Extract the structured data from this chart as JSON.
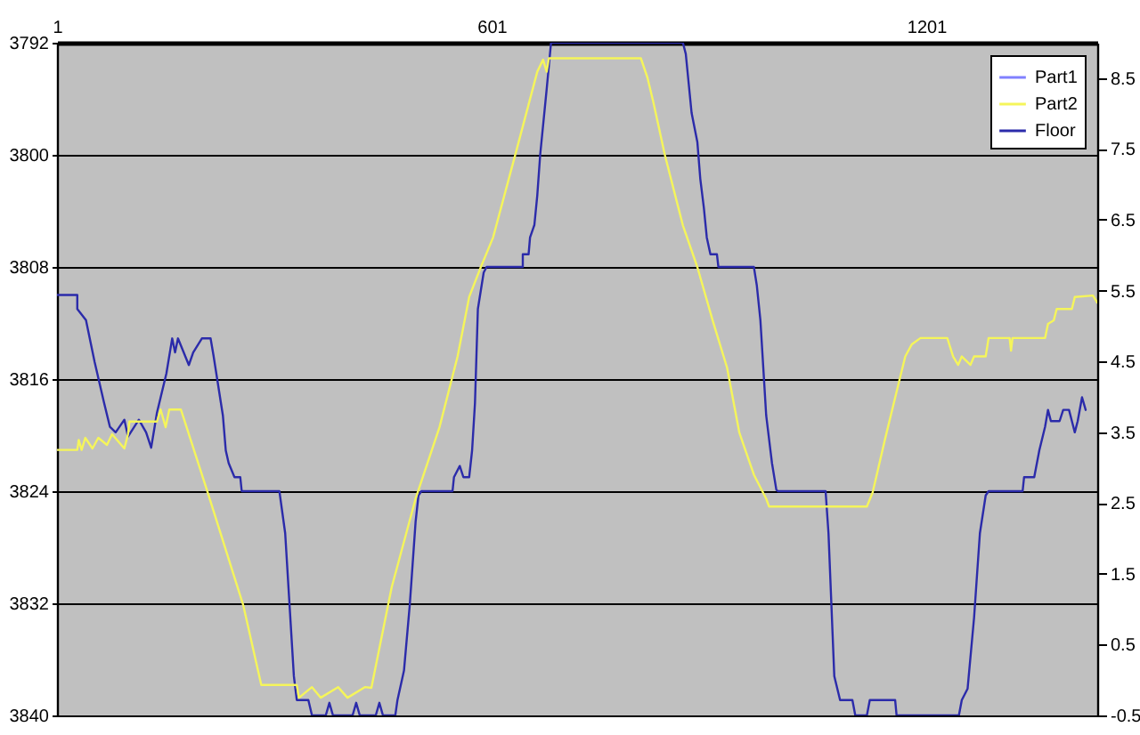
{
  "chart_data": {
    "type": "line",
    "xlim": [
      1,
      1437
    ],
    "xticks": [
      1,
      601,
      1201
    ],
    "ylim": [
      3840,
      3792
    ],
    "yticks": [
      3792,
      3800,
      3808,
      3816,
      3824,
      3832,
      3840
    ],
    "y2lim": [
      -0.5,
      9
    ],
    "y2ticks": [
      -0.5,
      0.5,
      1.5,
      2.5,
      3.5,
      4.5,
      5.5,
      6.5,
      7.5,
      8.5
    ],
    "grid": "y",
    "legend": "top right",
    "series": [
      {
        "name": "Part1",
        "color": "#8080ff"
      },
      {
        "name": "Part2",
        "color": "#f5f55a",
        "axis": "y2",
        "x": [
          1,
          29,
          31,
          35,
          40,
          50,
          58,
          70,
          77,
          94,
          99,
          101,
          139,
          144,
          151,
          156,
          172,
          209,
          258,
          283,
          332,
          335,
          353,
          365,
          389,
          402,
          426,
          435,
          463,
          496,
          529,
          554,
          570,
          586,
          603,
          636,
          664,
          672,
          677,
          680,
          807,
          816,
          824,
          840,
          865,
          885,
          906,
          926,
          943,
          963,
          980,
          984,
          1119,
          1127,
          1144,
          1160,
          1172,
          1181,
          1193,
          1230,
          1238,
          1245,
          1250,
          1262,
          1267,
          1283,
          1287,
          1316,
          1318,
          1320,
          1365,
          1369,
          1377,
          1381,
          1402,
          1406,
          1431,
          1437
        ],
        "values": [
          3.25,
          3.25,
          3.39,
          3.25,
          3.42,
          3.27,
          3.42,
          3.32,
          3.47,
          3.27,
          3.47,
          3.65,
          3.65,
          3.82,
          3.57,
          3.82,
          3.82,
          2.65,
          1.06,
          -0.07,
          -0.07,
          -0.25,
          -0.1,
          -0.25,
          -0.1,
          -0.25,
          -0.1,
          -0.11,
          1.31,
          2.56,
          3.57,
          4.57,
          5.41,
          5.83,
          6.25,
          7.51,
          8.59,
          8.76,
          8.59,
          8.78,
          8.78,
          8.51,
          8.17,
          7.42,
          6.42,
          5.83,
          5.08,
          4.41,
          3.49,
          2.9,
          2.56,
          2.45,
          2.45,
          2.65,
          3.4,
          4.07,
          4.57,
          4.74,
          4.83,
          4.83,
          4.57,
          4.45,
          4.57,
          4.45,
          4.57,
          4.57,
          4.83,
          4.83,
          4.65,
          4.83,
          4.83,
          5.03,
          5.08,
          5.24,
          5.24,
          5.41,
          5.43,
          5.33
        ]
      },
      {
        "name": "Floor",
        "color": "#2b2baa",
        "x": [
          1,
          29,
          29,
          41,
          53,
          66,
          74,
          82,
          94,
          99,
          114,
          124,
          131,
          139,
          152,
          160,
          164,
          168,
          183,
          189,
          201,
          213,
          217,
          230,
          234,
          238,
          246,
          254,
          256,
          308,
          316,
          322,
          328,
          332,
          348,
          353,
          372,
          377,
          382,
          409,
          414,
          419,
          441,
          446,
          451,
          468,
          471,
          480,
          488,
          496,
          500,
          504,
          547,
          549,
          557,
          562,
          570,
          574,
          578,
          582,
          590,
          594,
          644,
          644,
          652,
          654,
          660,
          664,
          668,
          677,
          683,
          865,
          869,
          877,
          885,
          889,
          894,
          898,
          903,
          912,
          914,
          963,
          967,
          972,
          976,
          980,
          988,
          994,
          996,
          1062,
          1066,
          1070,
          1074,
          1082,
          1099,
          1103,
          1119,
          1123,
          1158,
          1160,
          1246,
          1250,
          1258,
          1267,
          1275,
          1283,
          1287,
          1334,
          1336,
          1350,
          1357,
          1365,
          1369,
          1373,
          1385,
          1390,
          1398,
          1402,
          1406,
          1410,
          1416,
          1421
        ],
        "values": [
          3810,
          3810,
          3811,
          3811.8,
          3814.8,
          3817.7,
          3819.4,
          3819.8,
          3818.9,
          3820.1,
          3818.9,
          3819.8,
          3820.9,
          3818.4,
          3815.6,
          3813.1,
          3814.1,
          3813.1,
          3815,
          3814.1,
          3813.1,
          3813.1,
          3814.3,
          3818.6,
          3821.1,
          3822,
          3823,
          3823,
          3824,
          3824,
          3827,
          3832.1,
          3837.2,
          3838.9,
          3838.9,
          3840,
          3840,
          3839.1,
          3840,
          3840,
          3839.1,
          3840,
          3840,
          3839.1,
          3840,
          3840,
          3838.9,
          3836.8,
          3832.1,
          3826.2,
          3824.3,
          3824,
          3824,
          3823,
          3822.2,
          3823,
          3823,
          3821.1,
          3817.7,
          3811,
          3808.4,
          3808,
          3808,
          3807.1,
          3807.1,
          3805.9,
          3805,
          3802.9,
          3800,
          3795.3,
          3792,
          3792,
          3792.8,
          3797,
          3799.1,
          3801.7,
          3803.8,
          3805.9,
          3807.1,
          3807.1,
          3808,
          3808,
          3809.3,
          3811.8,
          3815.2,
          3818.6,
          3822,
          3823.9,
          3824,
          3824,
          3827,
          3832.1,
          3837.2,
          3838.9,
          3838.9,
          3840,
          3840,
          3838.9,
          3838.9,
          3840,
          3840,
          3838.9,
          3838.1,
          3833,
          3827,
          3824.3,
          3824,
          3824,
          3823,
          3823,
          3821.1,
          3819.4,
          3818.2,
          3819,
          3819,
          3818.2,
          3818.2,
          3819,
          3819.8,
          3819,
          3817.3,
          3818.2
        ]
      }
    ]
  }
}
